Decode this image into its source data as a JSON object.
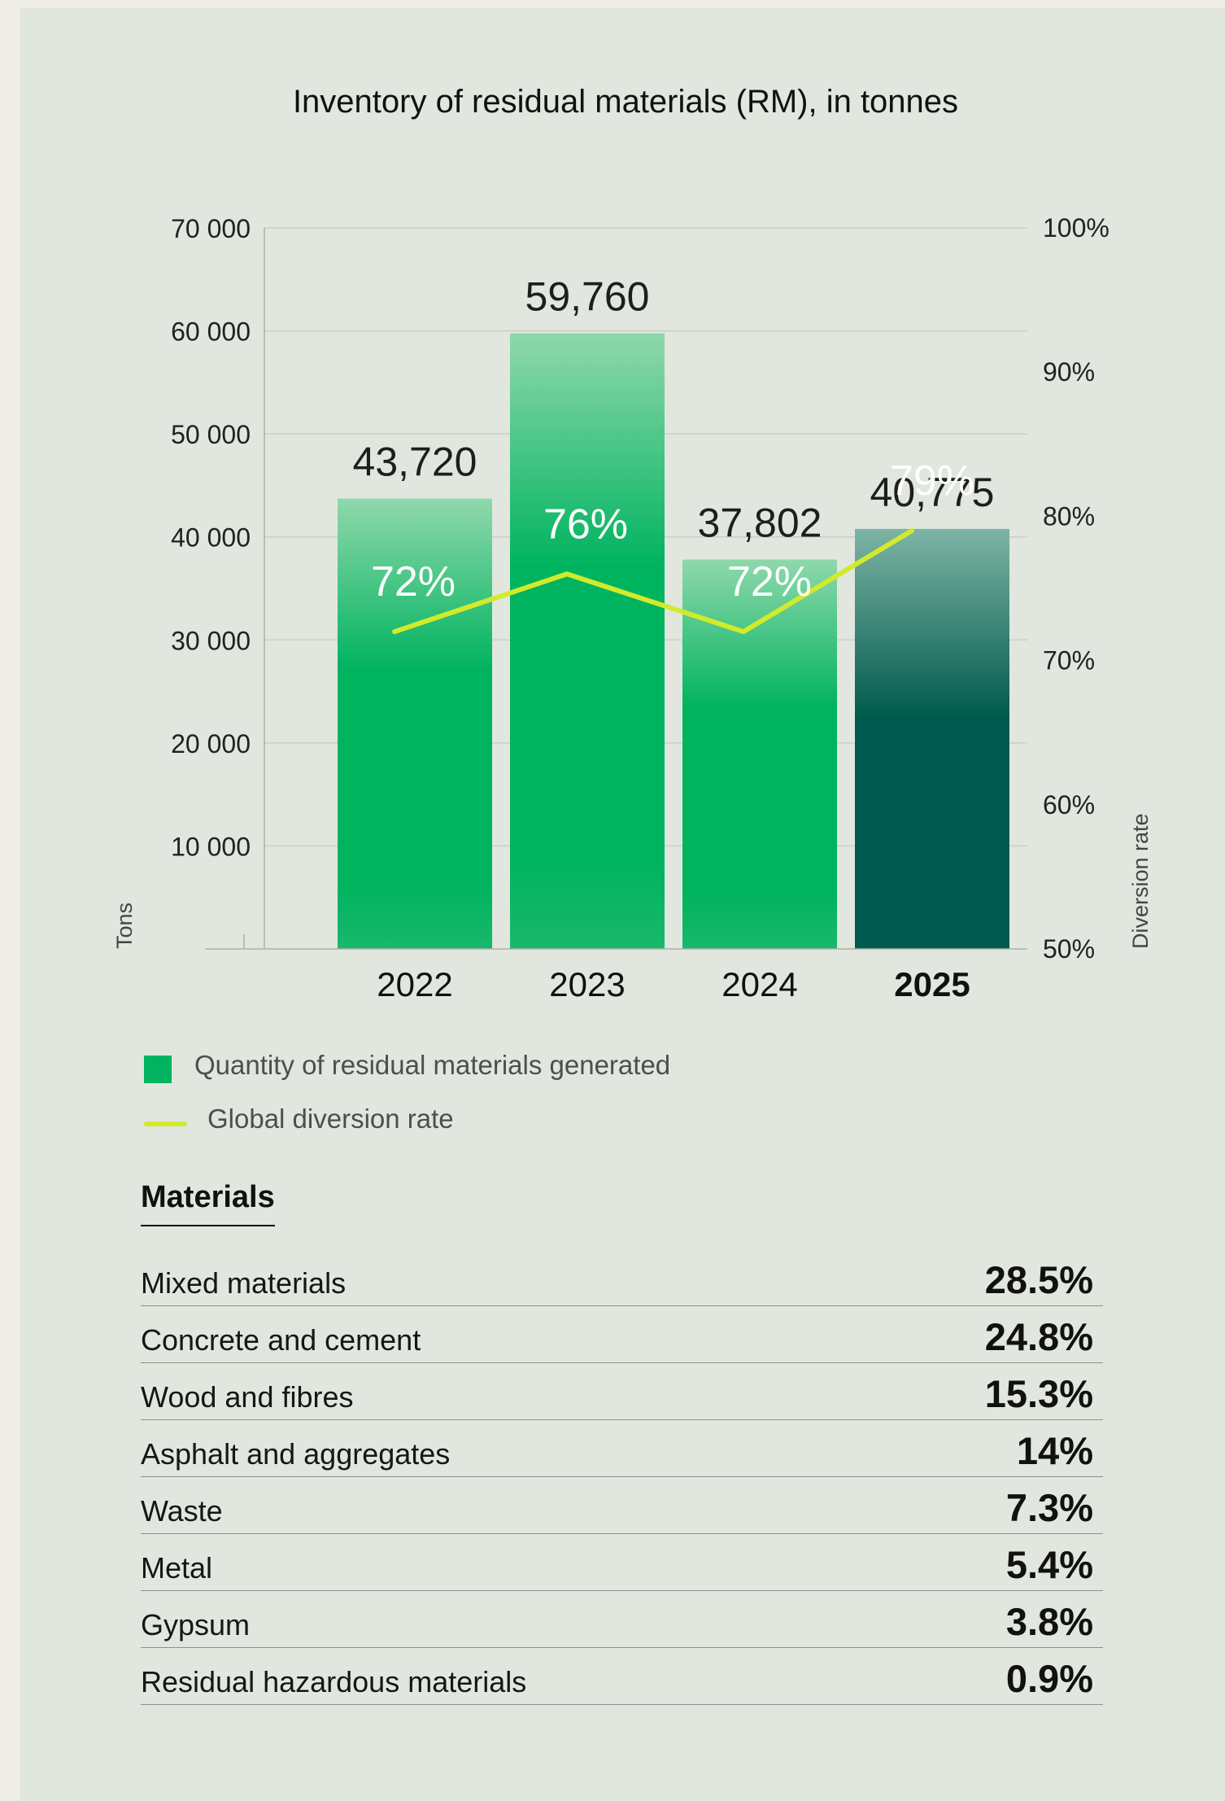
{
  "chart_data": {
    "type": "bar",
    "title": "Inventory of residual materials (RM), in tonnes",
    "categories": [
      "2022",
      "2023",
      "2024",
      "2025"
    ],
    "highlight_category": "2025",
    "ylabel": "Tons",
    "y2label": "Diversion rate",
    "ylim": [
      0,
      70000
    ],
    "y2lim": [
      50,
      100
    ],
    "yticks": [
      "",
      "10 000",
      "20 000",
      "30 000",
      "40 000",
      "50 000",
      "60 000",
      "70 000"
    ],
    "y2ticks": [
      "50%",
      "60%",
      "70%",
      "80%",
      "90%",
      "100%"
    ],
    "series": [
      {
        "name": "Quantity of residual materials generated",
        "type": "bar",
        "values": [
          43720,
          59760,
          37802,
          40775
        ],
        "labels": [
          "43,720",
          "59,760",
          "37,802",
          "40,775"
        ],
        "color": "#00b35f",
        "highlight_color": "#005a4d"
      },
      {
        "name": "Global diversion rate",
        "type": "line",
        "axis": "right",
        "values": [
          72,
          76,
          72,
          79
        ],
        "labels": [
          "72%",
          "76%",
          "72%",
          "79%"
        ],
        "color": "#d2ea2c"
      }
    ],
    "legend_position": "bottom-left",
    "grid": true
  },
  "materials": {
    "heading": "Materials",
    "items": [
      {
        "label": "Mixed materials",
        "value": "28.5%"
      },
      {
        "label": "Concrete and cement",
        "value": "24.8%"
      },
      {
        "label": "Wood and fibres",
        "value": "15.3%"
      },
      {
        "label": "Asphalt and aggregates",
        "value": "14%"
      },
      {
        "label": "Waste",
        "value": "7.3%"
      },
      {
        "label": "Metal",
        "value": "5.4%"
      },
      {
        "label": "Gypsum",
        "value": "3.8%"
      },
      {
        "label": "Residual hazardous materials",
        "value": "0.9%"
      }
    ]
  }
}
